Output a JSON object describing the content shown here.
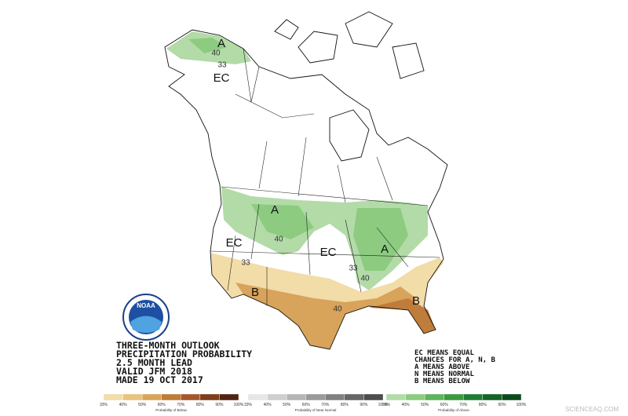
{
  "map": {
    "labels": [
      "A",
      "40",
      "33",
      "EC",
      "A",
      "40",
      "EC",
      "33",
      "EC",
      "A",
      "33",
      "40",
      "B",
      "40",
      "B"
    ]
  },
  "logo": "NOAA",
  "title_block": [
    "THREE-MONTH OUTLOOK",
    "PRECIPITATION PROBABILITY",
    "2.5 MONTH LEAD",
    "VALID JFM 2018",
    "MADE 19 OCT 2017"
  ],
  "notes": [
    "EC MEANS EQUAL",
    "CHANCES FOR A, N, B",
    "A MEANS ABOVE",
    "N MEANS NORMAL",
    "B MEANS BELOW"
  ],
  "legend": [
    {
      "caption": "Probability of Below",
      "ticks": [
        "33%",
        "40%",
        "50%",
        "60%",
        "70%",
        "80%",
        "90%",
        "100%"
      ],
      "colors": [
        "#f2dca8",
        "#e8c27f",
        "#d8a35a",
        "#bf7c3a",
        "#a3592b",
        "#7e3d1c",
        "#4f2414"
      ]
    },
    {
      "caption": "Probability of Near Normal",
      "ticks": [
        "33%",
        "40%",
        "50%",
        "60%",
        "70%",
        "80%",
        "90%",
        "100%"
      ],
      "colors": [
        "#e6e6e6",
        "#cfcfcf",
        "#b5b5b5",
        "#9a9a9a",
        "#808080",
        "#666666",
        "#4d4d4d"
      ]
    },
    {
      "caption": "Probability of Above",
      "ticks": [
        "33%",
        "40%",
        "50%",
        "60%",
        "70%",
        "80%",
        "90%",
        "100%"
      ],
      "colors": [
        "#b3dba8",
        "#8ccb80",
        "#5fb35a",
        "#3a9a40",
        "#1f7d33",
        "#156428",
        "#0b4a1d"
      ]
    }
  ],
  "watermark": "SCIENCEAQ.COM"
}
